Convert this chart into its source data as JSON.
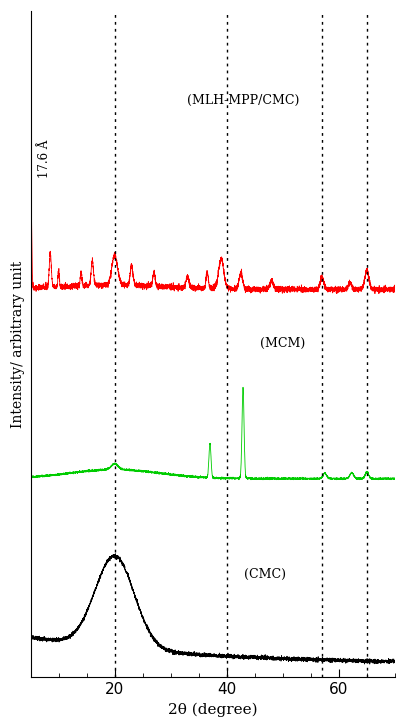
{
  "xlabel": "2θ (degree)",
  "ylabel": "Intensity/ arbitrary unit",
  "xlim": [
    5,
    70
  ],
  "dotted_lines": [
    20,
    40,
    57,
    65
  ],
  "label_MLH": "(MLH-MPP/CMC)",
  "label_MCM": "(MCM)",
  "label_CMC": "(CMC)",
  "annotation_d": "17.6 Å",
  "colors": {
    "MLH": "#ff0000",
    "MCM": "#00cc00",
    "CMC": "#000000"
  },
  "offsets": {
    "MLH": 0.62,
    "MCM": 0.32,
    "CMC": 0.02
  }
}
